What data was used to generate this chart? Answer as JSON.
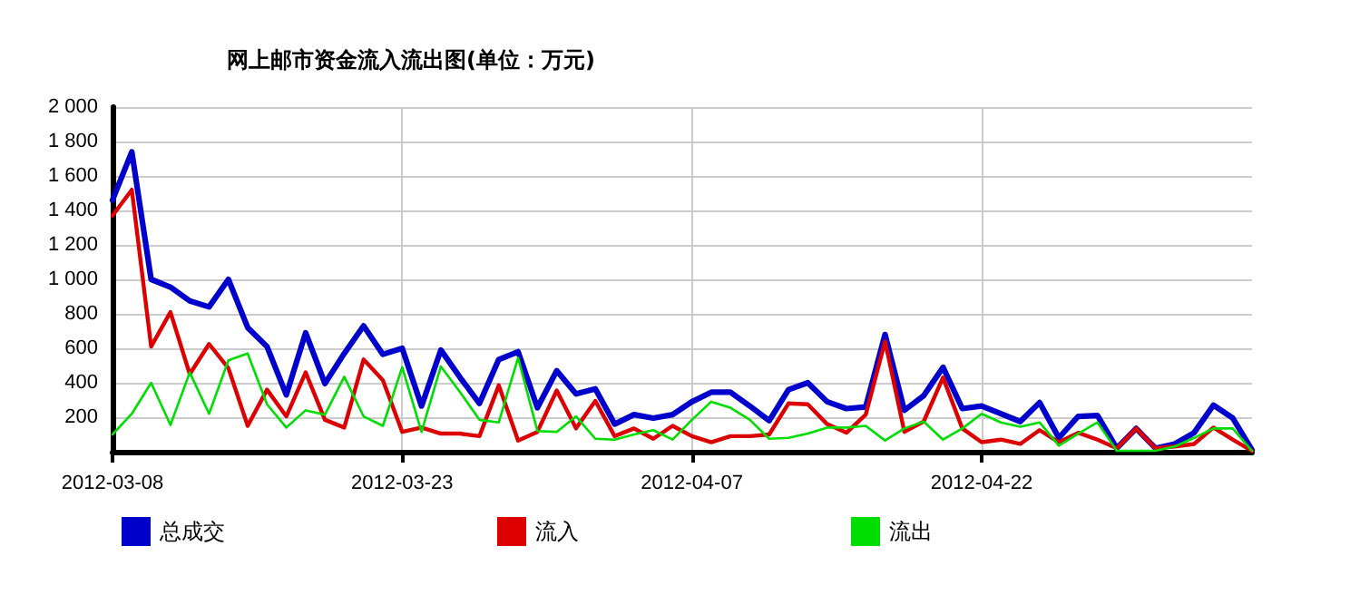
{
  "chart_data": {
    "type": "line",
    "title": "网上邮市资金流入流出图(单位：万元)",
    "x": [
      "2012-03-08",
      "2012-03-09",
      "2012-03-10",
      "2012-03-11",
      "2012-03-12",
      "2012-03-13",
      "2012-03-14",
      "2012-03-15",
      "2012-03-16",
      "2012-03-17",
      "2012-03-18",
      "2012-03-19",
      "2012-03-20",
      "2012-03-21",
      "2012-03-22",
      "2012-03-23",
      "2012-03-24",
      "2012-03-25",
      "2012-03-26",
      "2012-03-27",
      "2012-03-28",
      "2012-03-29",
      "2012-03-30",
      "2012-03-31",
      "2012-04-01",
      "2012-04-02",
      "2012-04-03",
      "2012-04-04",
      "2012-04-05",
      "2012-04-06",
      "2012-04-07",
      "2012-04-08",
      "2012-04-09",
      "2012-04-10",
      "2012-04-11",
      "2012-04-12",
      "2012-04-13",
      "2012-04-14",
      "2012-04-15",
      "2012-04-16",
      "2012-04-17",
      "2012-04-18",
      "2012-04-19",
      "2012-04-20",
      "2012-04-21",
      "2012-04-22",
      "2012-04-23",
      "2012-04-24",
      "2012-04-25",
      "2012-04-26",
      "2012-04-27",
      "2012-04-28",
      "2012-04-29",
      "2012-04-30",
      "2012-05-01",
      "2012-05-02",
      "2012-05-03",
      "2012-05-04",
      "2012-05-05",
      "2012-05-06"
    ],
    "series": [
      {
        "name": "总成交",
        "color": "#0000cc",
        "values": [
          1460,
          1740,
          1000,
          955,
          875,
          840,
          1000,
          720,
          610,
          330,
          690,
          395,
          570,
          730,
          565,
          600,
          265,
          590,
          430,
          280,
          535,
          580,
          255,
          470,
          335,
          365,
          160,
          215,
          195,
          215,
          290,
          345,
          345,
          265,
          180,
          360,
          400,
          290,
          250,
          260,
          680,
          240,
          325,
          490,
          250,
          265,
          220,
          175,
          285,
          80,
          205,
          210,
          20,
          135,
          20,
          45,
          110,
          270,
          195,
          10
        ]
      },
      {
        "name": "流入",
        "color": "#dd0000",
        "values": [
          1370,
          1520,
          610,
          810,
          450,
          625,
          485,
          150,
          360,
          205,
          460,
          185,
          140,
          535,
          415,
          115,
          140,
          105,
          105,
          90,
          385,
          65,
          115,
          355,
          135,
          295,
          90,
          135,
          75,
          150,
          90,
          55,
          90,
          90,
          100,
          280,
          275,
          160,
          110,
          215,
          640,
          115,
          175,
          430,
          135,
          55,
          70,
          45,
          125,
          55,
          110,
          70,
          20,
          135,
          20,
          30,
          45,
          140,
          70,
          5
        ]
      },
      {
        "name": "流出",
        "color": "#00dd00",
        "values": [
          100,
          220,
          400,
          155,
          460,
          220,
          530,
          570,
          275,
          140,
          240,
          215,
          435,
          205,
          150,
          490,
          115,
          495,
          345,
          185,
          170,
          545,
          120,
          115,
          205,
          75,
          70,
          100,
          125,
          70,
          185,
          290,
          255,
          185,
          75,
          80,
          105,
          140,
          140,
          150,
          65,
          135,
          175,
          70,
          135,
          220,
          170,
          145,
          170,
          35,
          105,
          170,
          5,
          5,
          5,
          30,
          80,
          135,
          135,
          5
        ]
      }
    ],
    "xlim": [
      "2012-03-08",
      "2012-05-06"
    ],
    "xticks": [
      "2012-03-08",
      "2012-03-23",
      "2012-04-07",
      "2012-04-22"
    ],
    "ylim": [
      0,
      2000
    ],
    "yticks": [
      200,
      400,
      600,
      800,
      {
        "value": 1000,
        "label": "1 000"
      },
      {
        "value": 1200,
        "label": "1 200"
      },
      {
        "value": 1400,
        "label": "1 400"
      },
      {
        "value": 1600,
        "label": "1 600"
      },
      {
        "value": 1800,
        "label": "1 800"
      },
      {
        "value": 2000,
        "label": "2 000"
      }
    ],
    "grid": true,
    "legend": "bottom",
    "marker": "none",
    "line_style": "solid"
  }
}
